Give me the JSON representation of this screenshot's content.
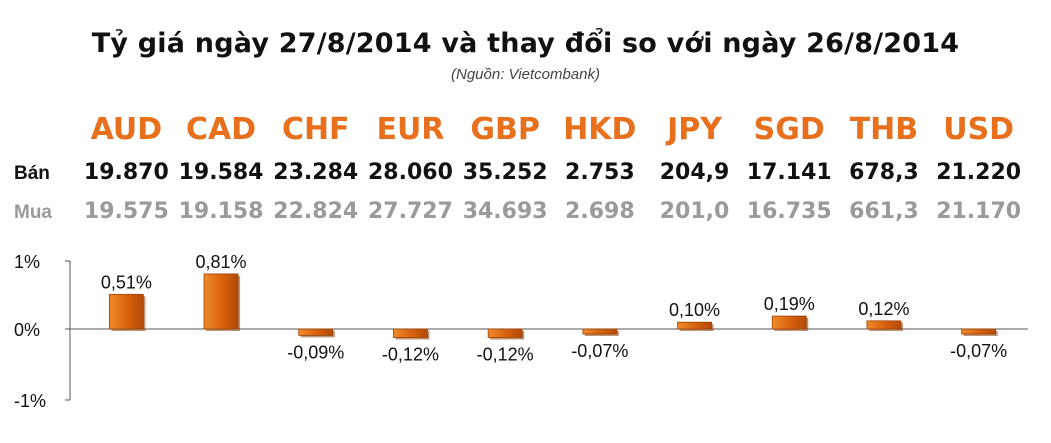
{
  "title": "Tỷ giá ngày 27/8/2014 và thay đổi so với ngày 26/8/2014",
  "source": "(Nguồn: Vietcombank)",
  "labels": {
    "sell": "Bán",
    "buy": "Mua"
  },
  "currencies": [
    "AUD",
    "CAD",
    "CHF",
    "EUR",
    "GBP",
    "HKD",
    "JPY",
    "SGD",
    "THB",
    "USD"
  ],
  "sell": [
    "19.870",
    "19.584",
    "23.284",
    "28.060",
    "35.252",
    "2.753",
    "204,9",
    "17.141",
    "678,3",
    "21.220"
  ],
  "buy": [
    "19.575",
    "19.158",
    "22.824",
    "27.727",
    "34.693",
    "2.698",
    "201,0",
    "16.735",
    "661,3",
    "21.170"
  ],
  "colors": {
    "accent": "#e8701c",
    "bar": "#d8600c",
    "bar_dark": "#8a3a05",
    "buy_text": "#9a9a9a"
  },
  "chart_data": {
    "type": "bar",
    "categories": [
      "AUD",
      "CAD",
      "CHF",
      "EUR",
      "GBP",
      "HKD",
      "JPY",
      "SGD",
      "THB",
      "USD"
    ],
    "values": [
      0.51,
      0.81,
      -0.09,
      -0.12,
      -0.12,
      -0.07,
      0.1,
      0.19,
      0.12,
      -0.07
    ],
    "data_labels": [
      "0,51%",
      "0,81%",
      "-0,09%",
      "-0,12%",
      "-0,12%",
      "-0,07%",
      "0,10%",
      "0,19%",
      "0,12%",
      "-0,07%"
    ],
    "y_ticks": [
      1,
      0,
      -1
    ],
    "y_tick_labels": [
      "1%",
      "0%",
      "-1%"
    ],
    "ylim": [
      -1,
      1
    ],
    "grid": false,
    "legend": "none"
  }
}
